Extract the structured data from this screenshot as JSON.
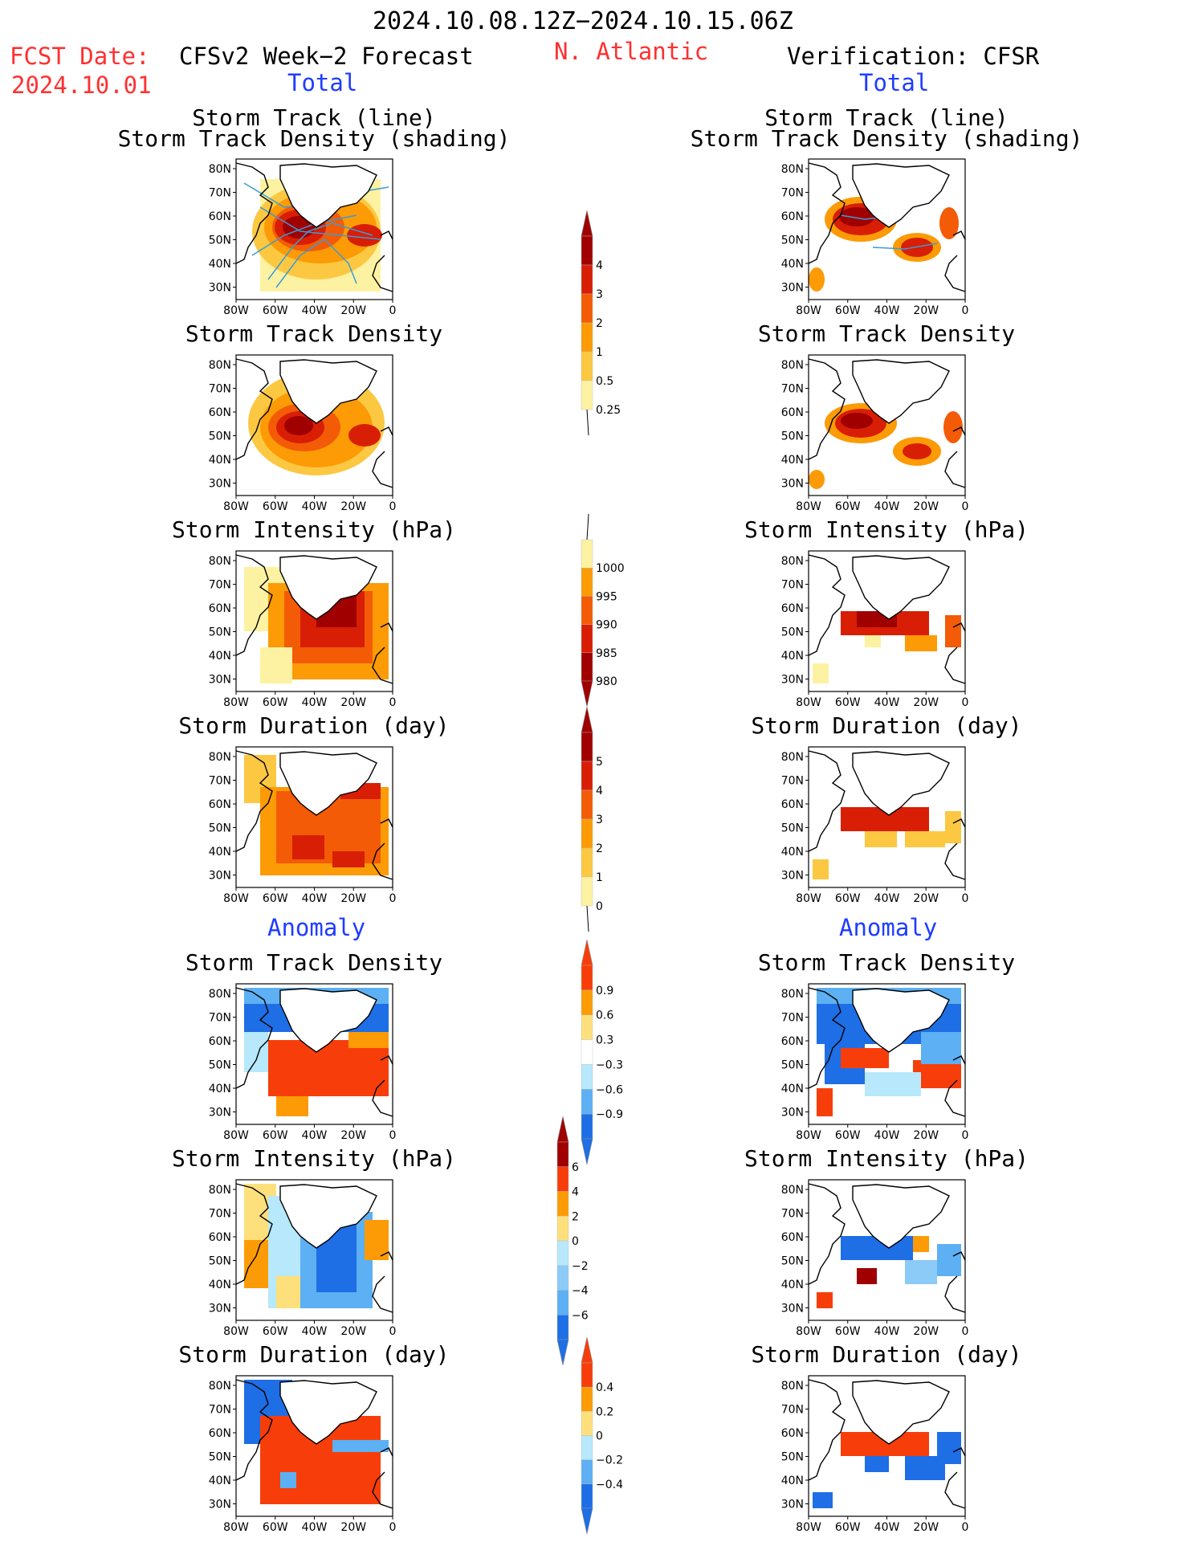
{
  "header": {
    "title": "2024.10.08.12Z−2024.10.15.06Z",
    "fcst_label": "FCST Date:",
    "fcst_date": "2024.10.01",
    "region": "N. Atlantic",
    "left_model": "CFSv2 Week−2 Forecast",
    "right_model": "Verification: CFSR",
    "total_left": "Total",
    "total_right": "Total",
    "anomaly_left": "Anomaly",
    "anomaly_right": "Anomaly"
  },
  "panel_titles": {
    "track_line": "Storm Track (line)",
    "track_density_shading": "Storm Track Density (shading)",
    "track_density": "Storm Track Density",
    "intensity": "Storm Intensity (hPa)",
    "duration": "Storm Duration (day)"
  },
  "axes": {
    "lat_ticks": [
      "80N",
      "70N",
      "60N",
      "50N",
      "40N",
      "30N"
    ],
    "lon_ticks": [
      "80W",
      "60W",
      "40W",
      "20W",
      "0"
    ]
  },
  "colorbars": {
    "density": {
      "labels": [
        "4",
        "3",
        "2",
        "1",
        "0.5",
        "0.25"
      ],
      "colors": [
        "#a00000",
        "#d81e05",
        "#f35b06",
        "#fc9b05",
        "#fcc842",
        "#fdf2a2"
      ]
    },
    "intensity": {
      "labels": [
        "1000",
        "995",
        "990",
        "985",
        "980"
      ],
      "colors": [
        "#fdf2a2",
        "#fc9b05",
        "#f35b06",
        "#d81e05",
        "#a00000"
      ]
    },
    "duration": {
      "labels": [
        "5",
        "4",
        "3",
        "2",
        "1",
        "0"
      ],
      "colors": [
        "#a00000",
        "#d81e05",
        "#f35b06",
        "#fc9b05",
        "#fcc842",
        "#fdf2a2"
      ]
    },
    "density_anom": {
      "labels": [
        "0.9",
        "0.6",
        "0.3",
        "−0.3",
        "−0.6",
        "−0.9"
      ],
      "colors": [
        "#f73e0a",
        "#fc9b05",
        "#fde07b",
        "#ffffff",
        "#b7e8fb",
        "#5cb0f3",
        "#1e6ee6"
      ]
    },
    "intensity_anom": {
      "labels": [
        "6",
        "4",
        "2",
        "0",
        "−2",
        "−4",
        "−6"
      ],
      "colors": [
        "#a00000",
        "#f73e0a",
        "#fc9b05",
        "#fde07b",
        "#b7e8fb",
        "#8ccaf8",
        "#5cb0f3",
        "#1e6ee6"
      ]
    },
    "duration_anom": {
      "labels": [
        "0.4",
        "0.2",
        "0",
        "−0.2",
        "−0.4"
      ],
      "colors": [
        "#f73e0a",
        "#fc9b05",
        "#fde07b",
        "#b7e8fb",
        "#5cb0f3",
        "#1e6ee6"
      ]
    }
  },
  "map_colors": {
    "track_line": "#3a9bd9",
    "land_outline": "#000000"
  }
}
